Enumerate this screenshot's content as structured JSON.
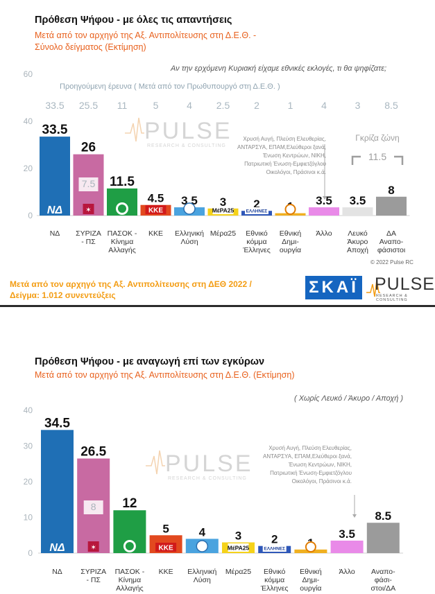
{
  "panel1": {
    "title": "Πρόθεση Ψήφου - με όλες τις απαντήσεις",
    "subtitle_line1": "Μετά από τον αρχηγό της Αξ. Αντιπολίτευσης στη Δ.Ε.Θ. -",
    "subtitle_line2": "Σύνολο δείγματος   (Εκτίμηση)",
    "question": "Αν την ερχόμενη Κυριακή είχαμε εθνικές εκλογές, τι θα ψηφίζατε;",
    "previous_label": "Προηγούμενη έρευνα  ( Μετά από τον Πρωθυπουργό στη Δ.Ε.Θ. )",
    "footer_line1": "Μετά από τον αρχηγό της Αξ. Αντιπολίτευσης στη ΔΕΘ  2022  /",
    "footer_line2": "Δείγμα:  1.012 συνεντεύξεις",
    "copyright": "© 2022 Pulse RC",
    "skai_logo": "ΣΚΑΪ",
    "pulse_logo": "PULSE",
    "pulse_logo_sub": "RESEARCH & CONSULTING"
  },
  "panel2": {
    "title": "Πρόθεση Ψήφου - με αναγωγή επί των εγκύρων",
    "subtitle": "Μετά από τον αρχηγό της Αξ. Αντιπολίτευσης στη Δ.Ε.Θ.  (Εκτίμηση)",
    "note": "( Χωρίς Λευκό / Άκυρο / Αποχή )"
  },
  "chart_data": [
    {
      "type": "bar",
      "ylim": [
        0,
        60
      ],
      "yticks": [
        0,
        20,
        40,
        60
      ],
      "categories": [
        [
          "ΝΔ"
        ],
        [
          "ΣΥΡΙΖΑ",
          "- ΠΣ"
        ],
        [
          "ΠΑΣΟΚ -",
          "Κίνημα",
          "Αλλαγής"
        ],
        [
          "ΚΚΕ"
        ],
        [
          "Ελληνική",
          "Λύση"
        ],
        [
          "Μέρα25"
        ],
        [
          "Εθνικό",
          "κόμμα",
          "Έλληνες"
        ],
        [
          "Εθνική",
          "Δημι-",
          "ουργία"
        ],
        [
          "Άλλο"
        ],
        [
          "Λευκό",
          "Άκυρο",
          "Αποχή"
        ],
        [
          "ΔΑ",
          "Αναπο-",
          "φάσιστοι"
        ]
      ],
      "values": [
        33.5,
        26,
        11.5,
        4.5,
        3.5,
        3,
        2,
        1,
        3.5,
        3.5,
        8
      ],
      "value_labels": [
        "33.5",
        "26",
        "11.5",
        "4.5",
        "3.5",
        "3",
        "2",
        "1",
        "3.5",
        "3.5",
        "8"
      ],
      "previous_values": [
        "33.5",
        "25.5",
        "11",
        "5",
        "4",
        "2.5",
        "2",
        "1",
        "4",
        "3",
        "8.5"
      ],
      "colors": [
        "#1f6fb5",
        "#c86aa2",
        "#1f9e45",
        "#e2491f",
        "#4aa3df",
        "#f5d21a",
        "#2e57b8",
        "#f0b020",
        "#e98ae8",
        "#e3e3e3",
        "#9b9b9b"
      ],
      "inset_label": "7.5",
      "grey_zone_label": "Γκρίζα ζώνη",
      "grey_zone_value": "11.5",
      "other_note": [
        "Χρυσή Αυγή, Πλεύση Ελευθερίας,",
        "ΑΝΤΑΡΣΥΑ, ΕΠΑΜ,Ελεύθεροι ξανά,",
        "Ένωση Κεντρώων, ΝΙΚΗ,",
        "Πατριωτική Ένωση-Εμφιετζόγλου",
        "Οικολόγοι, Πράσινοι  κ.ά."
      ],
      "watermark": "PULSE",
      "watermark_sub": "RESEARCH & CONSULTING"
    },
    {
      "type": "bar",
      "ylim": [
        0,
        40
      ],
      "yticks": [
        0,
        10,
        20,
        30,
        40
      ],
      "categories": [
        [
          "ΝΔ"
        ],
        [
          "ΣΥΡΙΖΑ",
          "- ΠΣ"
        ],
        [
          "ΠΑΣΟΚ -",
          "Κίνημα",
          "Αλλαγής"
        ],
        [
          "ΚΚΕ"
        ],
        [
          "Ελληνική",
          "Λύση"
        ],
        [
          "Μέρα25"
        ],
        [
          "Εθνικό",
          "κόμμα",
          "Έλληνες"
        ],
        [
          "Εθνική",
          "Δημι-",
          "ουργία"
        ],
        [
          "Άλλο"
        ],
        [
          "Αναπο-",
          "φάσι-",
          "στοι/ΔΑ"
        ]
      ],
      "values": [
        34.5,
        26.5,
        12,
        5,
        4,
        3,
        2,
        1,
        3.5,
        8.5
      ],
      "value_labels": [
        "34.5",
        "26.5",
        "12",
        "5",
        "4",
        "3",
        "2",
        "1",
        "3.5",
        "8.5"
      ],
      "colors": [
        "#1f6fb5",
        "#c86aa2",
        "#1f9e45",
        "#e2491f",
        "#4aa3df",
        "#f5d21a",
        "#2e57b8",
        "#f0b020",
        "#e98ae8",
        "#9b9b9b"
      ],
      "inset_label": "8",
      "other_note": [
        "Χρυσή Αυγή, Πλεύση Ελευθερίας,",
        "ΑΝΤΑΡΣΥΑ, ΕΠΑΜ,Ελεύθεροι ξανά,",
        "Ένωση Κεντρώων,  ΝΙΚΗ,",
        "Πατριωτική Ένωση-Εμφιετζόγλου",
        "Οικολόγοι, Πράσινοι  κ.ά."
      ],
      "watermark": "PULSE",
      "watermark_sub": "RESEARCH & CONSULTING"
    }
  ]
}
